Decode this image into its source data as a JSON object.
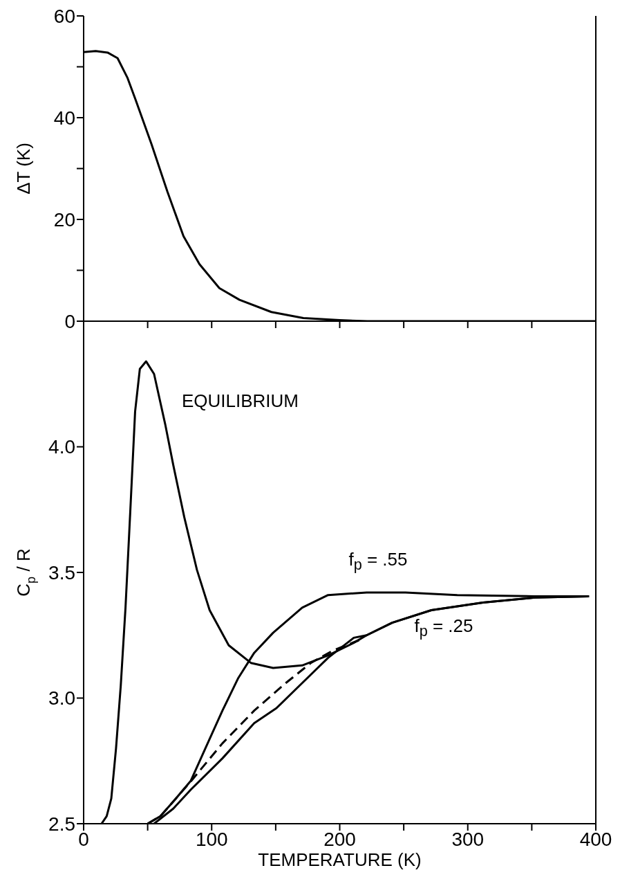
{
  "chart_data": [
    {
      "type": "line",
      "ylabel": "ΔT (K)",
      "xlim": [
        0,
        400
      ],
      "xticks": [
        0,
        {
          "value": 50,
          "label": null
        },
        100,
        {
          "value": 150,
          "label": null
        },
        200,
        {
          "value": 250,
          "label": null
        },
        300,
        {
          "value": 350,
          "label": null
        },
        400
      ],
      "ylim": [
        0,
        60
      ],
      "yticks": [
        0,
        {
          "value": 10,
          "label": null
        },
        20,
        {
          "value": 30,
          "label": null
        },
        40,
        {
          "value": 50,
          "label": null
        },
        60
      ],
      "tick_labels": "y",
      "marker": "none",
      "series": [
        {
          "color": "#000000",
          "x": [
            0,
            9.4,
            18.7,
            26.5,
            34.3,
            40.6,
            53,
            65.5,
            78,
            90.5,
            106,
            121.7,
            146.6,
            171.6,
            200,
            221.5,
            260,
            300,
            350,
            400
          ],
          "values": [
            52.9,
            53.1,
            52.8,
            51.7,
            47.8,
            43.5,
            34.8,
            25.4,
            16.7,
            11.2,
            6.5,
            4.2,
            1.8,
            0.6,
            0.2,
            0,
            0,
            0,
            0,
            0
          ]
        }
      ]
    },
    {
      "type": "line",
      "xlabel": "TEMPERATURE (K)",
      "ylabel": "C$_{p}$ / R",
      "xlim": [
        0,
        400
      ],
      "xticks": [
        0,
        {
          "value": 50,
          "label": null
        },
        100,
        {
          "value": 150,
          "label": null
        },
        200,
        {
          "value": 250,
          "label": null
        },
        300,
        {
          "value": 350,
          "label": null
        },
        400
      ],
      "ylim": [
        2.5,
        4.5
      ],
      "yticks": [
        2.5,
        {
          "value": 3,
          "label": "3.0"
        },
        3.5,
        {
          "value": 4,
          "label": "4.0"
        }
      ],
      "marker": "none",
      "series": [
        {
          "name": "EQUILIBRIUM",
          "color": "#000000",
          "x": [
            14,
            18,
            21.6,
            25.3,
            29,
            32.7,
            36.4,
            40.2,
            43.9,
            48.8,
            55,
            63.7,
            69.9,
            78.6,
            88.5,
            98.4,
            113.3,
            130.6,
            148,
            170.7,
            190.9,
            211,
            221,
            241,
            271.6,
            311.9,
            352.3,
            394.7
          ],
          "values": [
            2.5,
            2.53,
            2.6,
            2.8,
            3.05,
            3.36,
            3.74,
            4.14,
            4.31,
            4.34,
            4.29,
            4.09,
            3.93,
            3.72,
            3.51,
            3.35,
            3.21,
            3.14,
            3.12,
            3.13,
            3.17,
            3.22,
            3.25,
            3.3,
            3.35,
            3.38,
            3.4,
            3.405
          ]
        },
        {
          "name": "f$_{p}$ = .55",
          "color": "#000000",
          "x": [
            50,
            60,
            72,
            83.6,
            96,
            108.4,
            120.8,
            133.2,
            148,
            170.7,
            190.9,
            221,
            251.4,
            291.8,
            352.3,
            394.7
          ],
          "values": [
            2.5,
            2.53,
            2.6,
            2.67,
            2.81,
            2.95,
            3.08,
            3.18,
            3.26,
            3.36,
            3.41,
            3.42,
            3.42,
            3.41,
            3.405,
            3.405
          ]
        },
        {
          "color": "#000000",
          "line_style": "dashed",
          "x": [
            50,
            60,
            72,
            84,
            108.4,
            133.2,
            157.9,
            177.5,
            195,
            215
          ],
          "values": [
            2.5,
            2.53,
            2.6,
            2.67,
            2.82,
            2.95,
            3.06,
            3.14,
            3.19,
            3.23
          ]
        },
        {
          "name": "f$_{p}$ = .25",
          "color": "#000000",
          "x": [
            55,
            70,
            83.6,
            108.4,
            133.2,
            150.6,
            170.7,
            190.9,
            211,
            221,
            241,
            271.6,
            311.9,
            352.3,
            394.7
          ],
          "values": [
            2.5,
            2.56,
            2.635,
            2.76,
            2.9,
            2.96,
            3.06,
            3.16,
            3.24,
            3.25,
            3.3,
            3.35,
            3.38,
            3.4,
            3.405
          ]
        }
      ]
    }
  ]
}
